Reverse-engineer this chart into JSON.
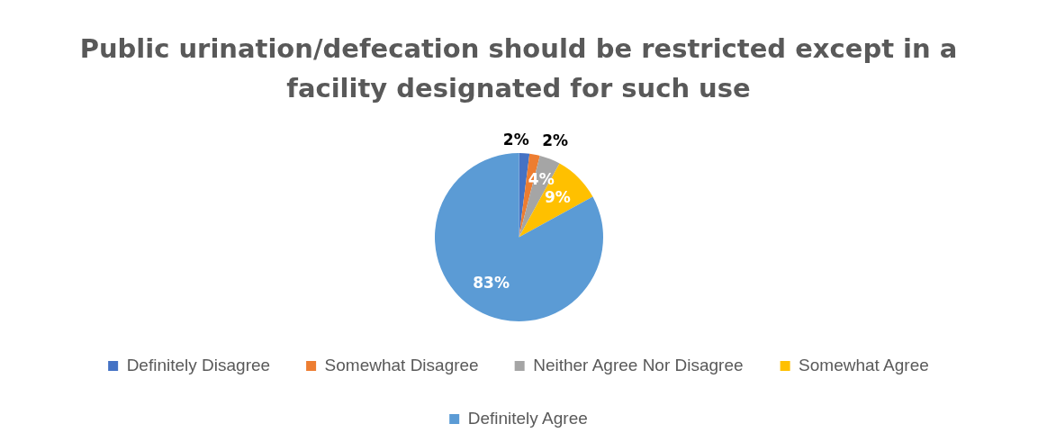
{
  "chart_data": {
    "type": "pie",
    "title": "Public urination/defecation should be restricted except in a facility designated for such use",
    "categories": [
      "Definitely Disagree",
      "Somewhat Disagree",
      "Neither Agree Nor Disagree",
      "Somewhat Agree",
      "Definitely Agree"
    ],
    "values": [
      2,
      2,
      4,
      9,
      83
    ],
    "colors": [
      "#4472c4",
      "#ed7d31",
      "#a5a5a5",
      "#ffc000",
      "#5b9bd5"
    ],
    "value_labels": [
      "2%",
      "2%",
      "4%",
      "9%",
      "83%"
    ],
    "legend": "bottom"
  }
}
